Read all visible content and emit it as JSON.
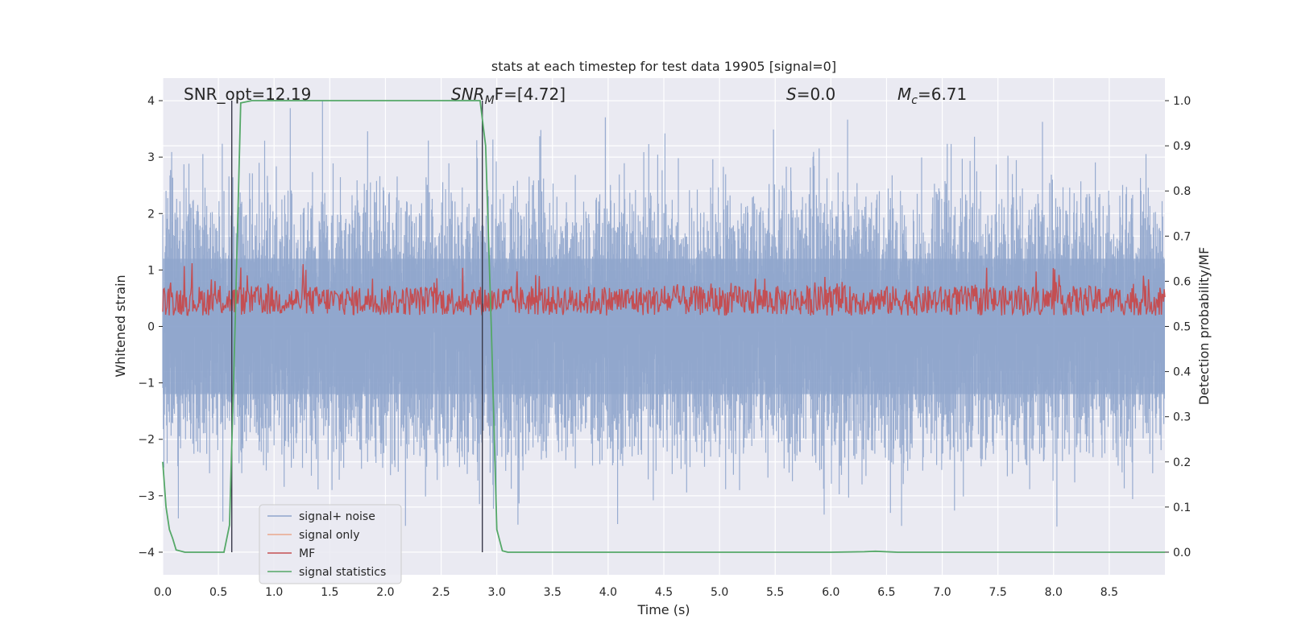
{
  "chart_data": {
    "type": "line",
    "title": "stats at each timestep for test data 19905 [signal=0]",
    "xlabel": "Time (s)",
    "ylabel_left": "Whitened strain",
    "ylabel_right": "Detection probability/MF",
    "xlim": [
      0.0,
      9.0
    ],
    "ylim_left": [
      -4.4,
      4.4
    ],
    "ylim_right": [
      -0.05,
      1.05
    ],
    "x_ticks": [
      "0.0",
      "0.5",
      "1.0",
      "1.5",
      "2.0",
      "2.5",
      "3.0",
      "3.5",
      "4.0",
      "4.5",
      "5.0",
      "5.5",
      "6.0",
      "6.5",
      "7.0",
      "7.5",
      "8.0",
      "8.5"
    ],
    "y_ticks_left": [
      "4",
      "3",
      "2",
      "1",
      "0",
      "−1",
      "−2",
      "−3",
      "−4"
    ],
    "y_ticks_right": [
      "1.0",
      "0.9",
      "0.8",
      "0.7",
      "0.6",
      "0.5",
      "0.4",
      "0.3",
      "0.2",
      "0.1",
      "0.0"
    ],
    "grid": true,
    "legend_position": "lower-left",
    "annotations": {
      "snr_opt": "SNR_opt=12.19",
      "snr_mf_prefix": "SNR",
      "snr_mf_sub": "M",
      "snr_mf_suffix": "F=[4.72]",
      "s_prefix": "S",
      "s_suffix": "=0.0",
      "mc_prefix": "M",
      "mc_sub": "c",
      "mc_suffix": "=6.71"
    },
    "vertical_markers": [
      0.62,
      2.87
    ],
    "series": [
      {
        "name": "signal+ noise",
        "color": "#8fa5cc",
        "description_range": [
          -3.9,
          4.0
        ]
      },
      {
        "name": "signal only",
        "color": "#e9a88c"
      },
      {
        "name": "MF",
        "color": "#c44e52",
        "description_range_right": [
          0.5,
          0.62
        ]
      },
      {
        "name": "signal statistics",
        "color": "#55a868",
        "x": [
          0.0,
          0.03,
          0.06,
          0.09,
          0.12,
          0.2,
          0.3,
          0.4,
          0.5,
          0.55,
          0.6,
          0.65,
          0.7,
          0.8,
          1.0,
          1.5,
          2.0,
          2.5,
          2.85,
          2.9,
          2.95,
          3.0,
          3.05,
          3.1,
          3.5,
          4.0,
          5.0,
          6.0,
          6.3,
          6.4,
          6.6,
          7.0,
          8.0,
          9.0
        ],
        "values": [
          0.2,
          0.1,
          0.05,
          0.03,
          0.005,
          0.0,
          0.0,
          0.0,
          0.0,
          0.0,
          0.06,
          0.5,
          0.995,
          1.0,
          1.0,
          1.0,
          1.0,
          1.0,
          1.0,
          0.9,
          0.5,
          0.05,
          0.003,
          0.0,
          0.0,
          0.0,
          0.0,
          0.0,
          0.001,
          0.002,
          0.0,
          0.0,
          0.0,
          0.0
        ]
      }
    ],
    "legend": [
      "signal+ noise",
      "signal only",
      "MF",
      "signal statistics"
    ]
  }
}
